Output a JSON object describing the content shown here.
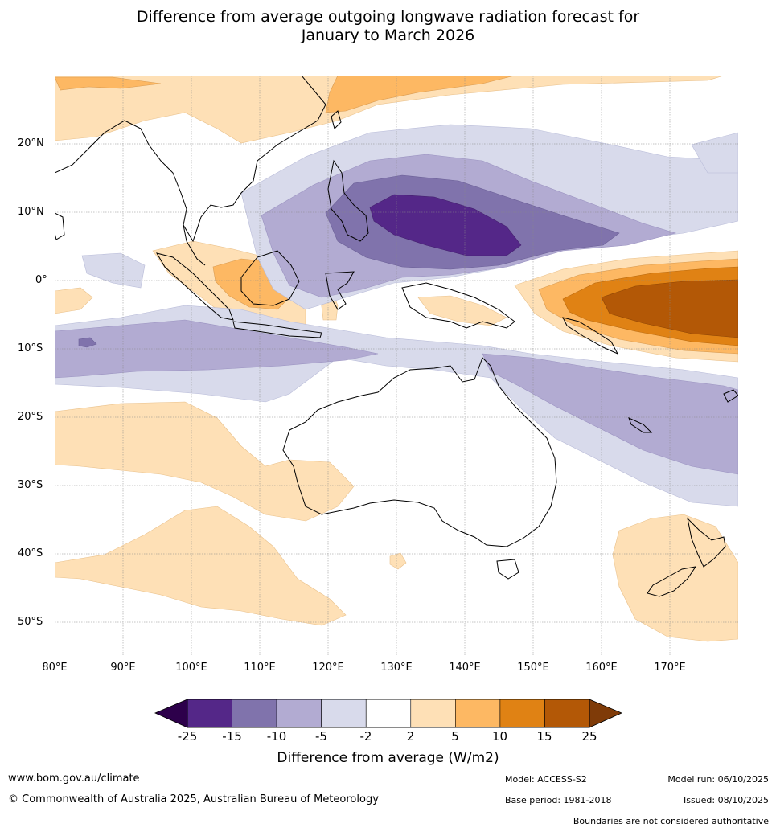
{
  "title_line1": "Difference from average outgoing longwave radiation forecast for",
  "title_line2": "January to March 2026",
  "lat_labels": [
    "20°N",
    "10°N",
    "0°",
    "10°S",
    "20°S",
    "30°S",
    "40°S",
    "50°S"
  ],
  "lon_labels": [
    "80°E",
    "90°E",
    "100°E",
    "110°E",
    "120°E",
    "130°E",
    "140°E",
    "150°E",
    "160°E",
    "170°E"
  ],
  "colorbar": {
    "labels": [
      "-25",
      "-15",
      "-10",
      "-5",
      "-2",
      "2",
      "5",
      "10",
      "15",
      "25"
    ],
    "colors": [
      "#542788",
      "#8073ac",
      "#b2abd2",
      "#d8daeb",
      "#ffffff",
      "#fee0b6",
      "#fdb863",
      "#e08214",
      "#b35806"
    ],
    "under_color": "#2d004b",
    "over_color": "#7f3b08",
    "title": "Difference from average (W/m2)"
  },
  "footer": {
    "website": "www.bom.gov.au/climate",
    "copyright": "© Commonwealth of Australia 2025, Australian Bureau of Meteorology",
    "model": "Model: ACCESS-S2",
    "base_period": "Base period: 1981-2018",
    "model_run": "Model run: 06/10/2025",
    "issued": "Issued: 08/10/2025",
    "disclaimer": "Boundaries are not considered authoritative"
  }
}
